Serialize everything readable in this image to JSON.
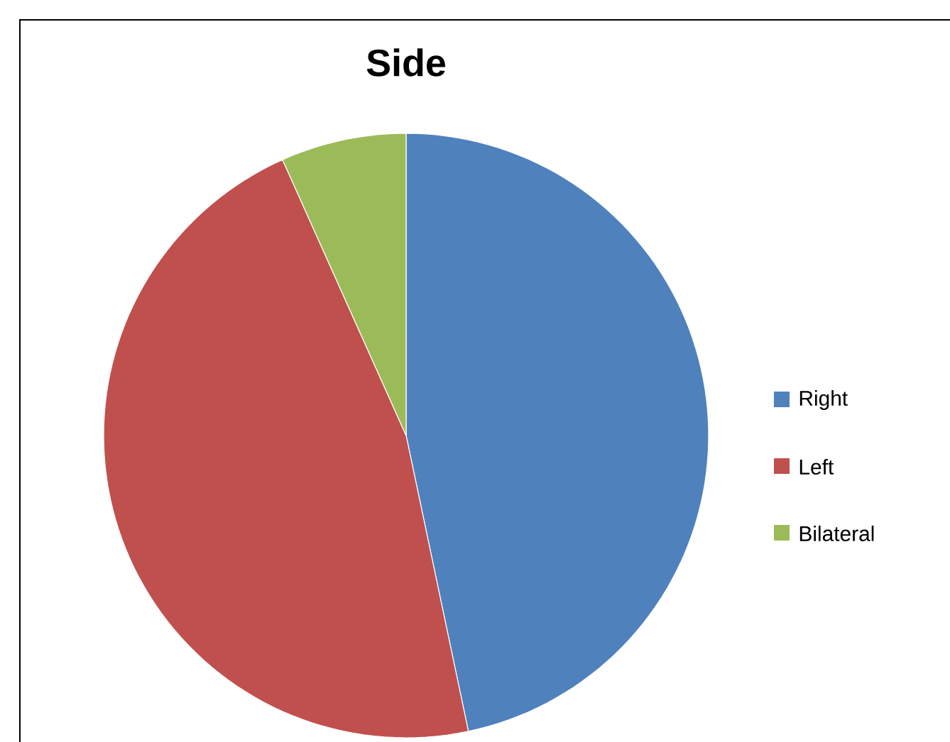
{
  "chart_data": {
    "type": "pie",
    "title": "Side",
    "categories": [
      "Right",
      "Left",
      "Bilateral"
    ],
    "values": [
      46.7,
      46.6,
      6.7
    ],
    "colors": [
      "#4f81bd",
      "#c0504d",
      "#9bbb59"
    ],
    "legend": "right"
  }
}
